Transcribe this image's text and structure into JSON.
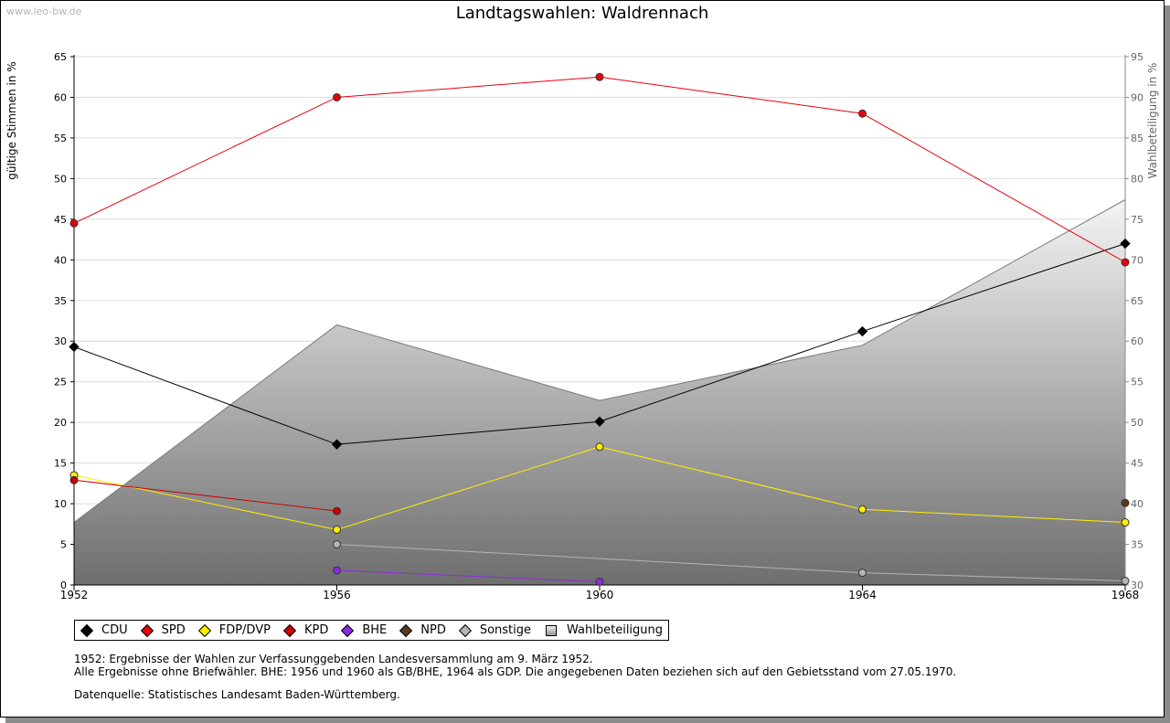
{
  "watermark": "www.leo-bw.de",
  "title": "Landtagswahlen: Waldrennach",
  "chart_data": {
    "type": "line",
    "title": "Landtagswahlen: Waldrennach",
    "ylabel": "gültige Stimmen in %",
    "ylabel_right": "Wahlbeteiligung in %",
    "x": [
      1952,
      1956,
      1960,
      1964,
      1968
    ],
    "ylim": [
      0,
      65
    ],
    "ylim_right": [
      30,
      95
    ],
    "yticks": [
      0,
      5,
      10,
      15,
      20,
      25,
      30,
      35,
      40,
      45,
      50,
      55,
      60,
      65
    ],
    "yticks_right": [
      30,
      35,
      40,
      45,
      50,
      55,
      60,
      65,
      70,
      75,
      80,
      85,
      90,
      95
    ],
    "grid": true,
    "legend_position": "bottom",
    "series": [
      {
        "name": "CDU",
        "color": "#000000",
        "values": [
          29.3,
          17.3,
          20.1,
          31.2,
          42.0
        ]
      },
      {
        "name": "SPD",
        "color": "#e8000b",
        "values": [
          44.5,
          60.0,
          62.5,
          58.0,
          39.7
        ]
      },
      {
        "name": "FDP/DVP",
        "color": "#ffee00",
        "values": [
          13.5,
          6.8,
          17.0,
          9.3,
          7.7
        ]
      },
      {
        "name": "KPD",
        "color": "#cc0000",
        "values": [
          12.9,
          9.1,
          null,
          null,
          null
        ]
      },
      {
        "name": "BHE",
        "color": "#8a2be2",
        "values": [
          null,
          1.8,
          0.4,
          null,
          null
        ]
      },
      {
        "name": "NPD",
        "color": "#5c3a1e",
        "values": [
          null,
          null,
          null,
          null,
          10.1
        ]
      },
      {
        "name": "Sonstige",
        "color": "#b4b4b4",
        "values": [
          null,
          5.0,
          null,
          1.5,
          0.5
        ]
      },
      {
        "name": "Wahlbeteiligung",
        "color": "#999999",
        "axis": "right",
        "type": "area",
        "values": [
          37.7,
          62.0,
          52.7,
          59.5,
          77.4
        ]
      }
    ]
  },
  "legend": [
    {
      "label": "CDU",
      "color": "#000000"
    },
    {
      "label": "SPD",
      "color": "#e8000b"
    },
    {
      "label": "FDP/DVP",
      "color": "#ffee00"
    },
    {
      "label": "KPD",
      "color": "#cc0000"
    },
    {
      "label": "BHE",
      "color": "#8a2be2"
    },
    {
      "label": "NPD",
      "color": "#5c3a1e"
    },
    {
      "label": "Sonstige",
      "color": "#b4b4b4"
    },
    {
      "label": "Wahlbeteiligung",
      "color": "#bbbbbb"
    }
  ],
  "notes": [
    "1952: Ergebnisse der Wahlen zur Verfassunggebenden Landesversammlung am 9. März 1952.",
    "Alle Ergebnisse ohne Briefwähler. BHE: 1956 und 1960 als GB/BHE, 1964 als GDP. Die angegebenen Daten beziehen sich auf den Gebietsstand vom 27.05.1970."
  ],
  "source": "Datenquelle: Statistisches Landesamt Baden-Württemberg."
}
